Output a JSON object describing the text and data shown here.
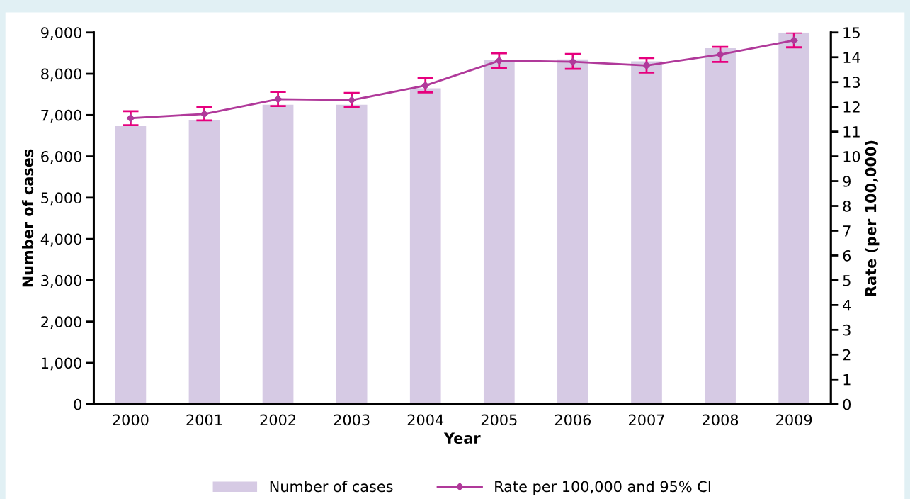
{
  "chart_data": {
    "type": "bar",
    "xlabel": "Year",
    "ylabel": "Number of cases",
    "y2label": "Rate (per 100,000)",
    "categories": [
      "2000",
      "2001",
      "2002",
      "2003",
      "2004",
      "2005",
      "2006",
      "2007",
      "2008",
      "2009"
    ],
    "series": [
      {
        "name": "Number of cases",
        "color": "#d6cae4",
        "values": [
          6730,
          6880,
          7250,
          7250,
          7650,
          8330,
          8350,
          8300,
          8620,
          9000
        ]
      },
      {
        "name": "Rate per 100,000 and 95% CI",
        "type": "line",
        "axis": "y2",
        "color": "#b0399a",
        "marker": "diamond",
        "values": [
          11.54,
          11.71,
          12.31,
          12.27,
          12.86,
          13.86,
          13.82,
          13.67,
          14.11,
          14.68
        ],
        "errors": [
          [
            11.26,
            11.82
          ],
          [
            11.45,
            12.0
          ],
          [
            12.03,
            12.6
          ],
          [
            12.0,
            12.56
          ],
          [
            12.58,
            13.15
          ],
          [
            13.57,
            14.16
          ],
          [
            13.53,
            14.13
          ],
          [
            13.38,
            13.97
          ],
          [
            13.81,
            14.42
          ],
          [
            14.4,
            14.99
          ]
        ]
      }
    ],
    "ylim": [
      0,
      9000
    ],
    "yticks": [
      {
        "value": 0,
        "label": "0"
      },
      {
        "value": 1000,
        "label": "1,000"
      },
      {
        "value": 2000,
        "label": "2,000"
      },
      {
        "value": 3000,
        "label": "3,000"
      },
      {
        "value": 4000,
        "label": "4,000"
      },
      {
        "value": 5000,
        "label": "5,000"
      },
      {
        "value": 6000,
        "label": "6,000"
      },
      {
        "value": 7000,
        "label": "7,000"
      },
      {
        "value": 8000,
        "label": "8,000"
      },
      {
        "value": 9000,
        "label": "9,000"
      }
    ],
    "y2lim": [
      0,
      15
    ],
    "y2ticks": [
      0,
      1,
      2,
      3,
      4,
      5,
      6,
      7,
      8,
      9,
      10,
      11,
      12,
      13,
      14,
      15
    ],
    "grid": false,
    "legend": "bottom"
  }
}
